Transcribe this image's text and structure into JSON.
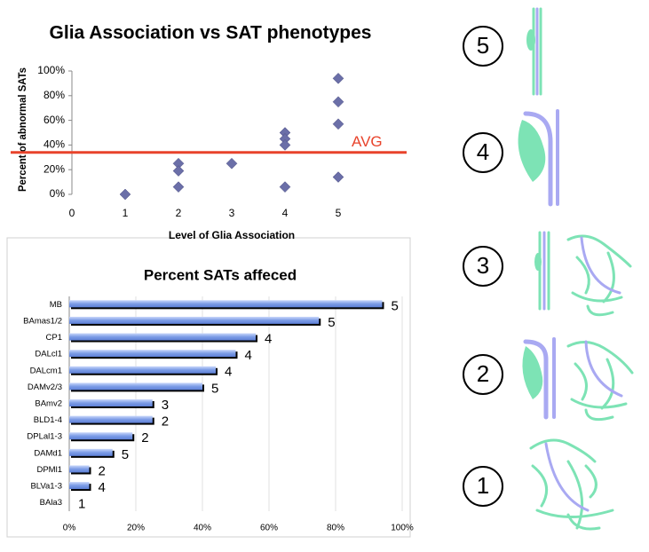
{
  "chart_data": [
    {
      "type": "scatter",
      "title": "Glia Association vs SAT phenotypes",
      "x_label": "Level of Glia Association",
      "y_label": "Percent of abnormal SATs",
      "x": [
        1,
        2,
        2,
        2,
        3,
        4,
        4,
        4,
        4,
        5,
        5,
        5,
        5
      ],
      "values": [
        0,
        25,
        19,
        6,
        25,
        50,
        45,
        40,
        6,
        94,
        75,
        57,
        14
      ],
      "color": "#6b6fa8",
      "xlim": [
        0,
        6
      ],
      "xticks": [
        0,
        1,
        2,
        3,
        4,
        5
      ],
      "ylim": [
        0,
        100
      ],
      "yticks": [
        {
          "value": 0,
          "label": "0%"
        },
        {
          "value": 20,
          "label": "20%"
        },
        {
          "value": 40,
          "label": "40%"
        },
        {
          "value": 60,
          "label": "60%"
        },
        {
          "value": 80,
          "label": "80%"
        },
        {
          "value": 100,
          "label": "100%"
        }
      ],
      "reference_line": {
        "value": 34,
        "label": "AVG",
        "color": "#e8432b"
      }
    },
    {
      "type": "hbar",
      "title": "Percent SATs affeced",
      "categories": [
        "MB",
        "BAmas1/2",
        "CP1",
        "DALcl1",
        "DALcm1",
        "DAMv2/3",
        "BAmv2",
        "BLD1-4",
        "DPLal1-3",
        "DAMd1",
        "DPMl1",
        "BLVa1-3",
        "BAla3"
      ],
      "values": [
        94,
        75,
        56,
        50,
        44,
        40,
        25,
        25,
        19,
        13,
        6,
        6,
        0
      ],
      "levels": [
        "5",
        "5",
        "4",
        "4",
        "4",
        "5",
        "3",
        "2",
        "2",
        "5",
        "2",
        "4",
        "1"
      ],
      "color": "#7c9ce6",
      "xlim": [
        0,
        100
      ],
      "xticks": [
        {
          "value": 0,
          "label": "0%"
        },
        {
          "value": 20,
          "label": "20%"
        },
        {
          "value": 40,
          "label": "40%"
        },
        {
          "value": 60,
          "label": "60%"
        },
        {
          "value": 80,
          "label": "80%"
        },
        {
          "value": 100,
          "label": "100%"
        }
      ],
      "grid": true
    }
  ],
  "diagram": {
    "levels": [
      "5",
      "4",
      "3",
      "2",
      "1"
    ]
  }
}
